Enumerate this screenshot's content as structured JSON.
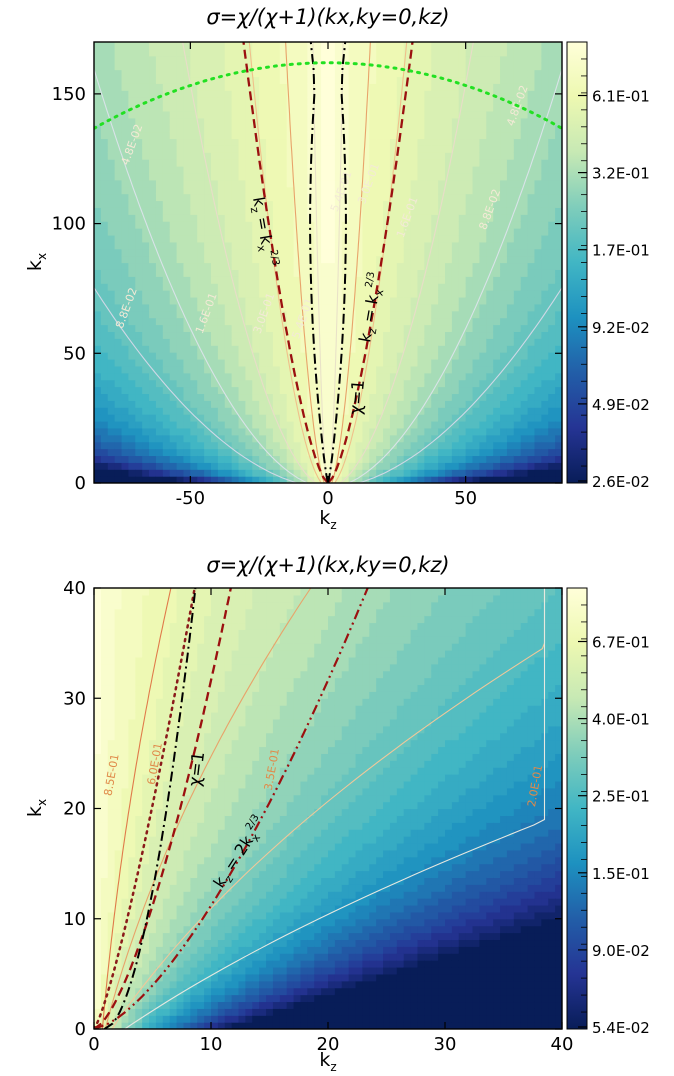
{
  "colormap": [
    "#081d58",
    "#253494",
    "#225ea8",
    "#1d91c0",
    "#41b6c4",
    "#7fcdbb",
    "#c7e9b4",
    "#edf8b1",
    "#ffffd9"
  ],
  "chart_data": [
    {
      "type": "heatmap",
      "title": "σ=χ/(χ+1)(kx,ky=0,kz)",
      "xlabel": "kz",
      "ylabel": "kx",
      "xlim": [
        -85,
        85
      ],
      "ylim": [
        0,
        170
      ],
      "xticks": [
        "-50",
        "0",
        "50"
      ],
      "xtick_values": [
        -50,
        0,
        50
      ],
      "yticks": [
        "0",
        "50",
        "100",
        "150"
      ],
      "ytick_values": [
        0,
        50,
        100,
        150
      ],
      "colorbar": {
        "ticks": [
          "2.6E-02",
          "4.9E-02",
          "9.2E-02",
          "1.7E-01",
          "3.2E-01",
          "6.1E-01"
        ],
        "range_log10": [
          -1.6,
          0.05
        ]
      },
      "contour_labels": [
        {
          "text": "4.8E-02",
          "kz": -70,
          "kx": 130
        },
        {
          "text": "4.8E-02",
          "kz": 70,
          "kx": 145
        },
        {
          "text": "8.8E-02",
          "kz": -72,
          "kx": 67
        },
        {
          "text": "8.8E-02",
          "kz": 60,
          "kx": 105
        },
        {
          "text": "1.6E-01",
          "kz": -43,
          "kx": 65
        },
        {
          "text": "1.6E-01",
          "kz": 30,
          "kx": 102
        },
        {
          "text": "3.0E-01",
          "kz": -22,
          "kx": 65
        },
        {
          "text": "3.0E-01",
          "kz": 16,
          "kx": 115
        },
        {
          "text": "5.4E-01",
          "kz": -8,
          "kx": 63
        },
        {
          "text": "5.4E-01",
          "kz": 6,
          "kx": 112
        }
      ],
      "curve_labels": {
        "chi_eq_1": "χ=1",
        "kz_eq_kx23": "kz = kx^2/3"
      },
      "annotations": [
        "kz = kx2/3",
        "kz = kx2/3",
        "χ=1"
      ]
    },
    {
      "type": "heatmap",
      "title": "σ=χ/(χ+1)(kx,ky=0,kz)",
      "xlabel": "kz",
      "ylabel": "kx",
      "xlim": [
        0,
        40
      ],
      "ylim": [
        0,
        40
      ],
      "xticks": [
        "0",
        "10",
        "20",
        "30",
        "40"
      ],
      "xtick_values": [
        0,
        10,
        20,
        30,
        40
      ],
      "yticks": [
        "0",
        "10",
        "20",
        "30",
        "40"
      ],
      "ytick_values": [
        0,
        10,
        20,
        30,
        40
      ],
      "colorbar": {
        "ticks": [
          "5.4E-02",
          "9.0E-02",
          "1.5E-01",
          "2.5E-01",
          "4.0E-01",
          "6.7E-01"
        ],
        "range_log10": [
          -1.27,
          0.0
        ]
      },
      "contour_labels": [
        {
          "text": "8.5E-01",
          "kz": 1.8,
          "kx": 23
        },
        {
          "text": "6.0E-01",
          "kz": 5.5,
          "kx": 24
        },
        {
          "text": "3.5E-01",
          "kz": 15.5,
          "kx": 23.5
        },
        {
          "text": "2.0E-01",
          "kz": 38,
          "kx": 22
        }
      ],
      "annotations": [
        "χ=1",
        "kz = 2kx2/3"
      ]
    }
  ]
}
